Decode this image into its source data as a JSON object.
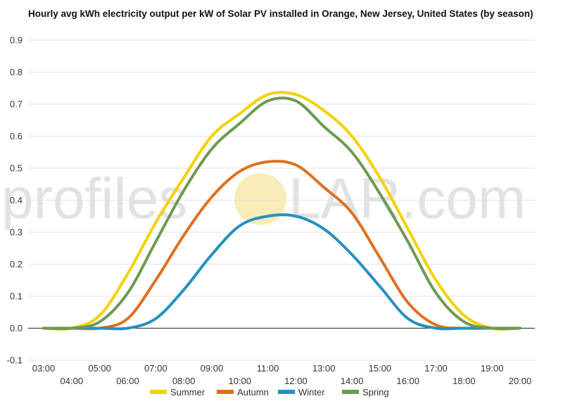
{
  "chart_data": {
    "type": "line",
    "title": "Hourly avg kWh electricity output per kW of Solar PV installed in Orange, New Jersey, United States (by season)",
    "xlabel": "",
    "ylabel": "",
    "categories": [
      "03:00",
      "04:00",
      "05:00",
      "06:00",
      "07:00",
      "08:00",
      "09:00",
      "10:00",
      "11:00",
      "12:00",
      "13:00",
      "14:00",
      "15:00",
      "16:00",
      "17:00",
      "18:00",
      "19:00",
      "20:00"
    ],
    "ylim": [
      -0.1,
      0.9
    ],
    "yticks": [
      "-0.1",
      "0.0",
      "0.1",
      "0.2",
      "0.3",
      "0.4",
      "0.5",
      "0.6",
      "0.7",
      "0.8",
      "0.9"
    ],
    "grid": true,
    "legend_position": "bottom",
    "series": [
      {
        "name": "Summer",
        "color": "#f5d000",
        "values": [
          0.0,
          0.0,
          0.04,
          0.17,
          0.33,
          0.47,
          0.6,
          0.67,
          0.73,
          0.73,
          0.68,
          0.6,
          0.47,
          0.31,
          0.15,
          0.04,
          0.0,
          0.0
        ]
      },
      {
        "name": "Autumn",
        "color": "#e07020",
        "values": [
          0.0,
          0.0,
          0.0,
          0.03,
          0.15,
          0.29,
          0.41,
          0.49,
          0.52,
          0.51,
          0.44,
          0.36,
          0.22,
          0.08,
          0.01,
          0.0,
          0.0,
          0.0
        ]
      },
      {
        "name": "Winter",
        "color": "#2790c0",
        "values": [
          0.0,
          0.0,
          0.0,
          0.0,
          0.03,
          0.12,
          0.23,
          0.32,
          0.35,
          0.35,
          0.31,
          0.23,
          0.13,
          0.03,
          0.0,
          0.0,
          0.0,
          0.0
        ]
      },
      {
        "name": "Spring",
        "color": "#6e9a50",
        "values": [
          0.0,
          0.0,
          0.02,
          0.11,
          0.27,
          0.43,
          0.56,
          0.64,
          0.71,
          0.71,
          0.63,
          0.55,
          0.42,
          0.27,
          0.11,
          0.02,
          0.0,
          0.0
        ]
      }
    ]
  },
  "watermark": {
    "left_text": "profiles",
    "right_text": "LAR.com",
    "sun_color": "#f7e7a8"
  }
}
